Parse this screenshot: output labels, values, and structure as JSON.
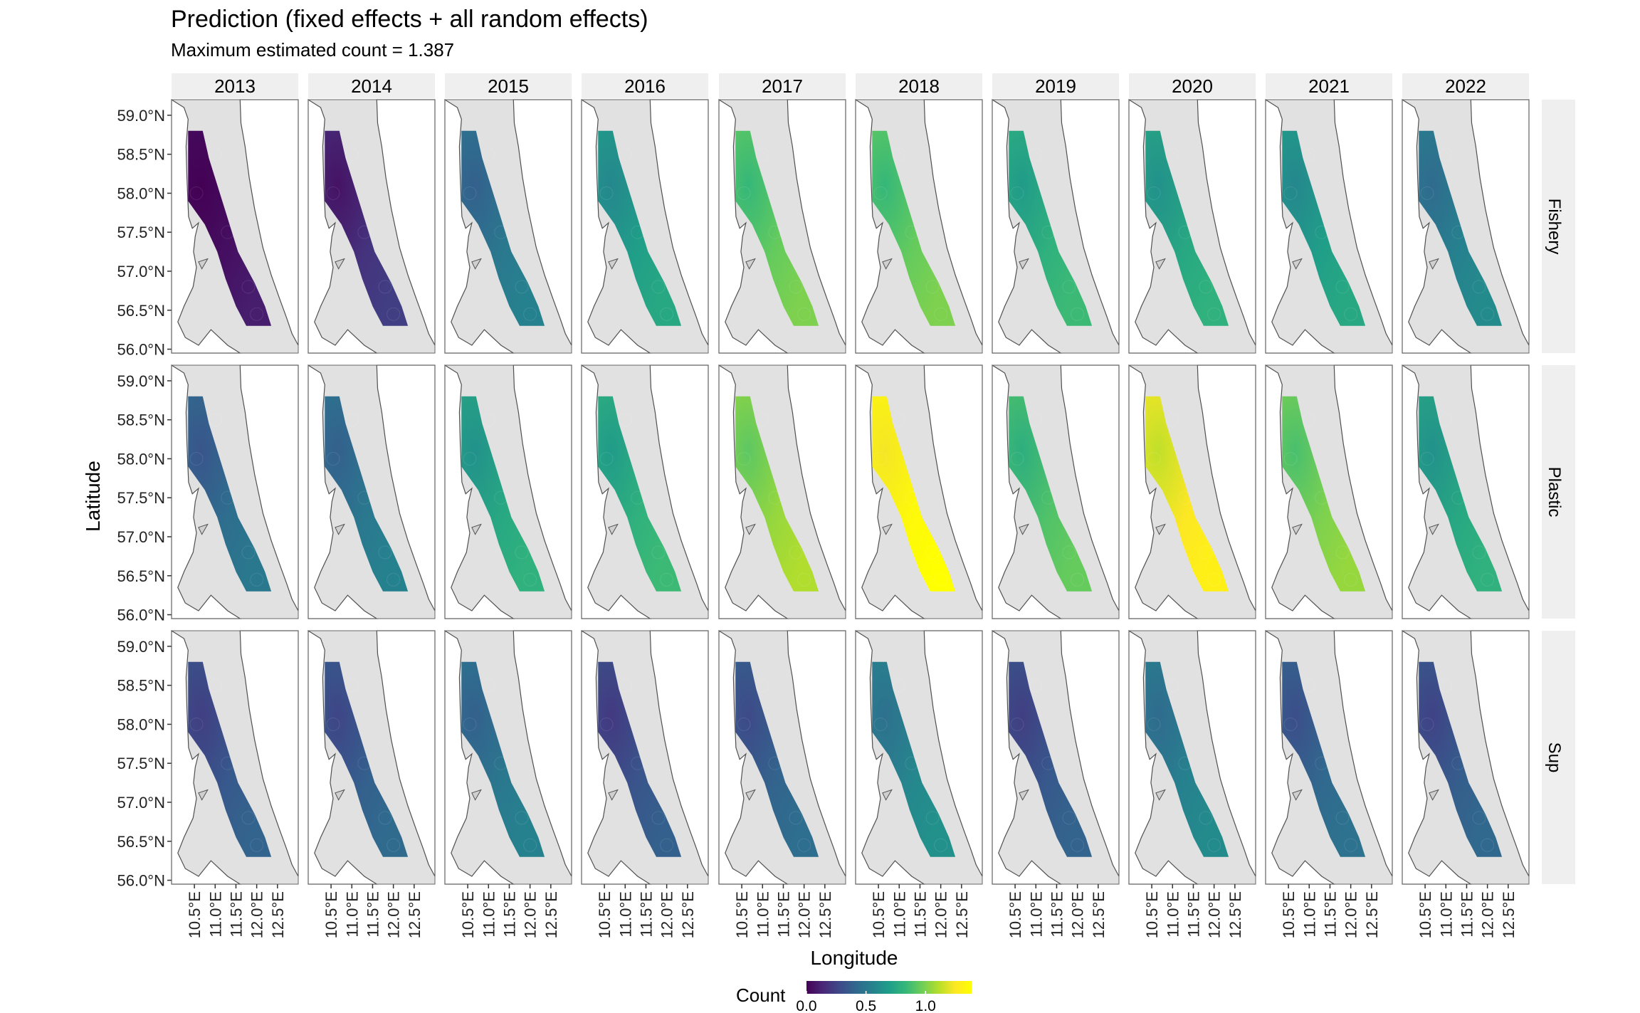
{
  "title": "Prediction (fixed effects + all random effects)",
  "subtitle": "Maximum estimated count = 1.387",
  "chart_data": {
    "type": "heatmap",
    "xlabel": "Longitude",
    "ylabel": "Latitude",
    "years": [
      "2013",
      "2014",
      "2015",
      "2016",
      "2017",
      "2018",
      "2019",
      "2020",
      "2021",
      "2022"
    ],
    "rows": [
      "Fishery",
      "Plastic",
      "Sup"
    ],
    "lat_ticks": [
      "59.0°N",
      "58.5°N",
      "58.0°N",
      "57.5°N",
      "57.0°N",
      "56.5°N",
      "56.0°N"
    ],
    "lon_ticks": [
      "10.5°E",
      "11.0°E",
      "11.5°E",
      "12.0°E",
      "12.5°E"
    ],
    "lat_range": [
      55.95,
      59.2
    ],
    "lon_range": [
      9.95,
      13.0
    ],
    "approx_mean_count": {
      "Fishery": [
        0.05,
        0.18,
        0.5,
        0.7,
        0.95,
        0.95,
        0.8,
        0.75,
        0.7,
        0.55
      ],
      "Plastic": [
        0.45,
        0.5,
        0.75,
        0.8,
        1.05,
        1.35,
        0.9,
        1.25,
        1.0,
        0.75
      ],
      "Sup": [
        0.35,
        0.38,
        0.5,
        0.33,
        0.4,
        0.58,
        0.35,
        0.55,
        0.42,
        0.37
      ]
    },
    "legend": {
      "title": "Count",
      "ticks": [
        "0.0",
        "0.5",
        "1.0"
      ],
      "tick_values": [
        0.0,
        0.5,
        1.0
      ],
      "max": 1.387
    },
    "colors": {
      "panel_bg": "#e1e1e1",
      "land": "#ffffff",
      "coast": "#505050",
      "strip": "#efefef",
      "viridis": [
        "#440154",
        "#482878",
        "#3e4989",
        "#31688e",
        "#26828e",
        "#1f9e89",
        "#35b779",
        "#6ece58",
        "#b5de2b",
        "#fde725",
        "#ffff00"
      ]
    }
  }
}
